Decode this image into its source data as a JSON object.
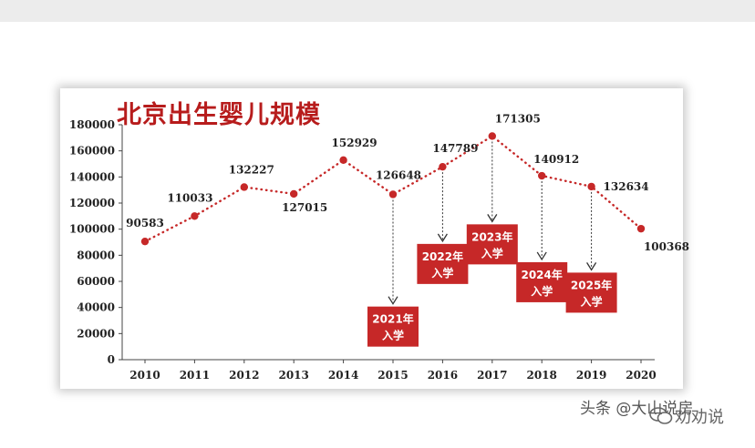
{
  "watermark": {
    "source": "头条 @大山说房",
    "account": "劝劝说",
    "icon": "wechat-icon"
  },
  "colors": {
    "accent": "#b71c1c",
    "line": "#c62828",
    "box": "#c62828",
    "arrow": "#333333"
  },
  "chart_data": {
    "type": "line",
    "title": "北京出生婴儿规模",
    "xlabel": "",
    "ylabel": "",
    "categories": [
      "2010",
      "2011",
      "2012",
      "2013",
      "2014",
      "2015",
      "2016",
      "2017",
      "2018",
      "2019",
      "2020"
    ],
    "values": [
      90583,
      110033,
      132227,
      127015,
      152929,
      126648,
      147789,
      171305,
      140912,
      132634,
      100368
    ],
    "ylim": [
      0,
      180000
    ],
    "yticks": [
      0,
      20000,
      40000,
      60000,
      80000,
      100000,
      120000,
      140000,
      160000,
      180000
    ],
    "grid": false,
    "line_style": "dotted",
    "annotations": [
      {
        "from": "2015",
        "lines": [
          "2021年",
          "入学"
        ],
        "level": 10000
      },
      {
        "from": "2016",
        "lines": [
          "2022年",
          "入学"
        ],
        "level": 58000
      },
      {
        "from": "2017",
        "lines": [
          "2023年",
          "入学"
        ],
        "level": 73000
      },
      {
        "from": "2018",
        "lines": [
          "2024年",
          "入学"
        ],
        "level": 44000
      },
      {
        "from": "2019",
        "lines": [
          "2025年",
          "入学"
        ],
        "level": 36000
      }
    ]
  }
}
